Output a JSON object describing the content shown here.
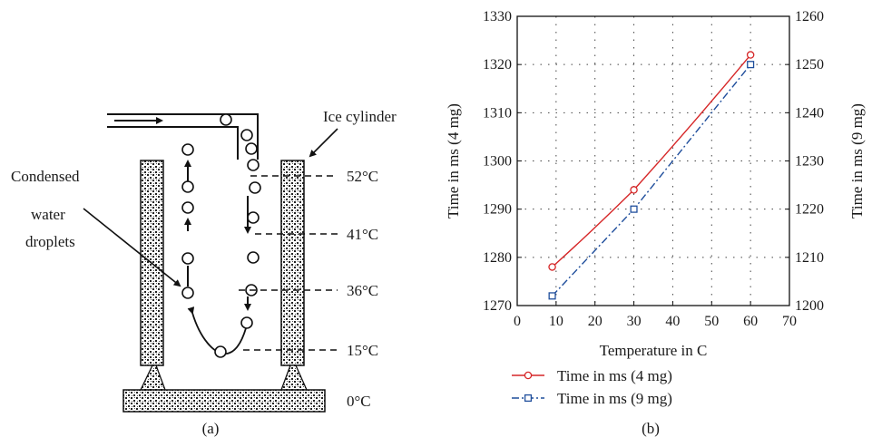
{
  "panel_a": {
    "caption": "(a)",
    "labels": {
      "ice_cylinder": "Ice cylinder",
      "condensed_1": "Condensed",
      "condensed_2": "water",
      "condensed_3": "droplets",
      "temp_52": "52°C",
      "temp_41": "41°C",
      "temp_36": "36°C",
      "temp_15": "15°C",
      "temp_0": "0°C"
    }
  },
  "panel_b": {
    "caption": "(b)"
  },
  "chart_data": {
    "type": "line",
    "xlabel": "Temperature in C",
    "ylabel_left": "Time in ms (4 mg)",
    "ylabel_right": "Time in ms (9 mg)",
    "xlim": [
      0,
      70
    ],
    "ylim_left": [
      1270,
      1330
    ],
    "ylim_right": [
      1200,
      1260
    ],
    "xticks": [
      0,
      10,
      20,
      30,
      40,
      50,
      60,
      70
    ],
    "yticks_left": [
      1270,
      1280,
      1290,
      1300,
      1310,
      1320,
      1330
    ],
    "yticks_right": [
      1200,
      1210,
      1220,
      1230,
      1240,
      1250,
      1260
    ],
    "grid": true,
    "legend_position": "below",
    "series": [
      {
        "name": "Time in ms (4 mg)",
        "axis": "left",
        "color": "#d62728",
        "marker": "circle",
        "line": "solid",
        "x": [
          9,
          30,
          60
        ],
        "y": [
          1278,
          1294,
          1322
        ]
      },
      {
        "name": "Time in ms (9 mg)",
        "axis": "right",
        "color": "#1f4e9c",
        "marker": "square",
        "line": "dashdot",
        "x": [
          9,
          30,
          60
        ],
        "y": [
          1202,
          1220,
          1250
        ]
      }
    ]
  }
}
